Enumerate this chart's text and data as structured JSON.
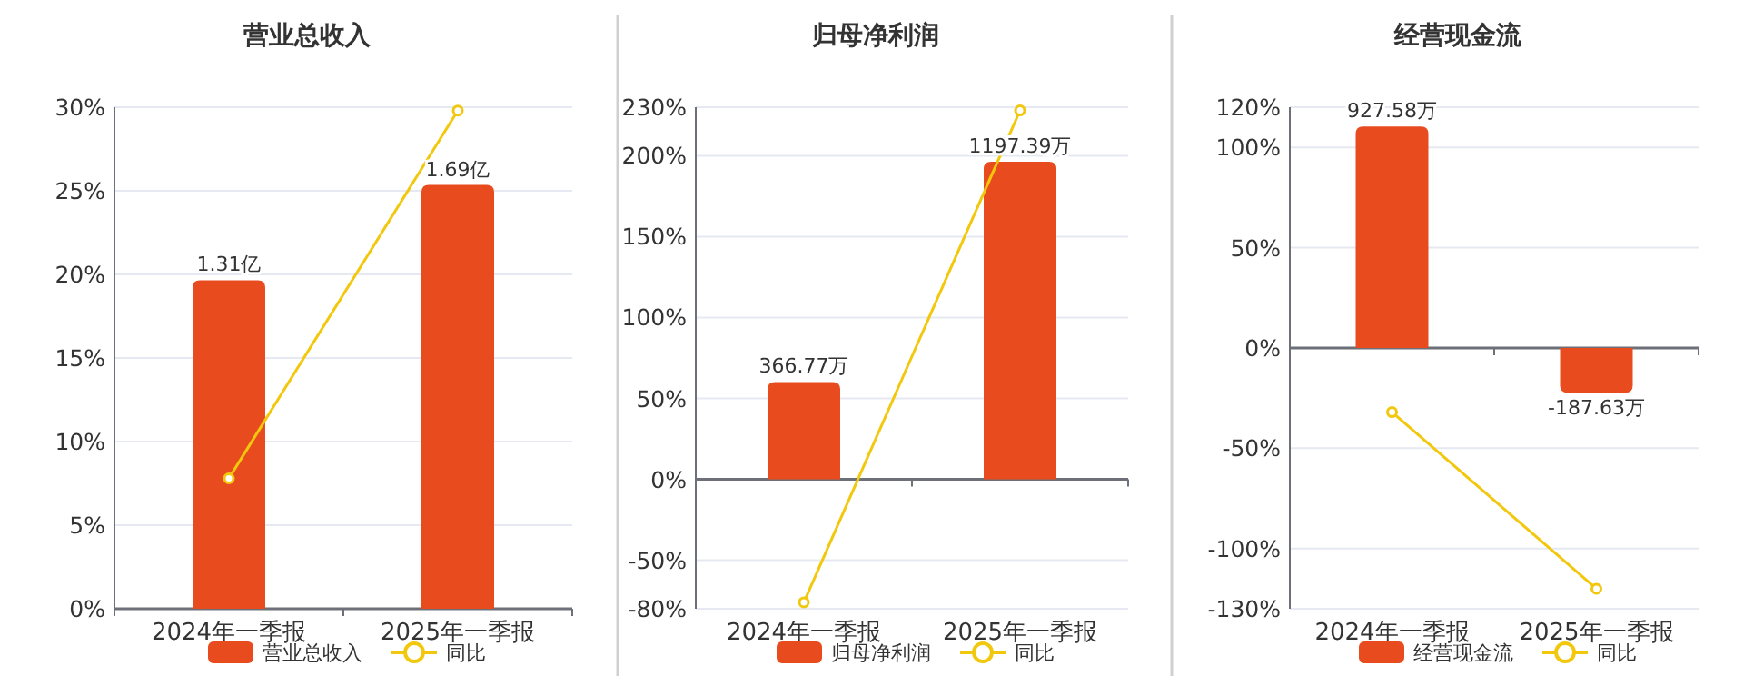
{
  "chart_data": [
    {
      "type": "bar",
      "title": "营业总收入",
      "categories": [
        "2024年一季报",
        "2025年一季报"
      ],
      "ylim": [
        0,
        30
      ],
      "yticks": [
        {
          "value": 0,
          "label": "0%"
        },
        {
          "value": 5,
          "label": "5%"
        },
        {
          "value": 10,
          "label": "10%"
        },
        {
          "value": 15,
          "label": "15%"
        },
        {
          "value": 20,
          "label": "20%"
        },
        {
          "value": 25,
          "label": "25%"
        },
        {
          "value": 30,
          "label": "30%"
        }
      ],
      "y2lim": [
        0,
        2
      ],
      "tick_labels": "xy",
      "grid": "y",
      "legend": "bottom",
      "marker": "circle",
      "series": [
        {
          "name": "营业总收入",
          "axis": "y2",
          "color": "#e84c1e",
          "values": [
            1.31,
            1.69
          ],
          "value_labels": [
            "1.31亿",
            "1.69亿"
          ]
        },
        {
          "name": "同比",
          "type": "line",
          "color": "#f2c80f",
          "values": [
            7.8,
            29.8
          ]
        }
      ]
    },
    {
      "type": "bar",
      "title": "归母净利润",
      "categories": [
        "2024年一季报",
        "2025年一季报"
      ],
      "ylim": [
        -80,
        230
      ],
      "yticks": [
        {
          "value": -80,
          "label": "-80%"
        },
        {
          "value": -50,
          "label": "-50%"
        },
        {
          "value": 0,
          "label": "0%"
        },
        {
          "value": 50,
          "label": "50%"
        },
        {
          "value": 100,
          "label": "100%"
        },
        {
          "value": 150,
          "label": "150%"
        },
        {
          "value": 200,
          "label": "200%"
        },
        {
          "value": 230,
          "label": "230%"
        }
      ],
      "y2lim": [
        -488,
        1403
      ],
      "tick_labels": "xy",
      "grid": "y",
      "legend": "bottom",
      "marker": "circle",
      "series": [
        {
          "name": "归母净利润",
          "axis": "y2",
          "color": "#e84c1e",
          "values": [
            366.77,
            1197.39
          ],
          "value_labels": [
            "366.77万",
            "1197.39万"
          ]
        },
        {
          "name": "同比",
          "type": "line",
          "color": "#f2c80f",
          "values": [
            -76,
            228
          ]
        }
      ]
    },
    {
      "type": "bar",
      "title": "经营现金流",
      "categories": [
        "2024年一季报",
        "2025年一季报"
      ],
      "ylim": [
        -130,
        120
      ],
      "yticks": [
        {
          "value": -130,
          "label": "-130%"
        },
        {
          "value": -100,
          "label": "-100%"
        },
        {
          "value": -50,
          "label": "-50%"
        },
        {
          "value": 0,
          "label": "0%"
        },
        {
          "value": 50,
          "label": "50%"
        },
        {
          "value": 100,
          "label": "100%"
        },
        {
          "value": 120,
          "label": "120%"
        }
      ],
      "y2lim": [
        -1092,
        1008
      ],
      "tick_labels": "xy",
      "grid": "y",
      "legend": "bottom",
      "marker": "circle",
      "series": [
        {
          "name": "经营现金流",
          "axis": "y2",
          "color": "#e84c1e",
          "values": [
            927.58,
            -187.63
          ],
          "value_labels": [
            "927.58万",
            "-187.63万"
          ]
        },
        {
          "name": "同比",
          "type": "line",
          "color": "#f2c80f",
          "values": [
            -32,
            -120
          ]
        }
      ]
    }
  ]
}
